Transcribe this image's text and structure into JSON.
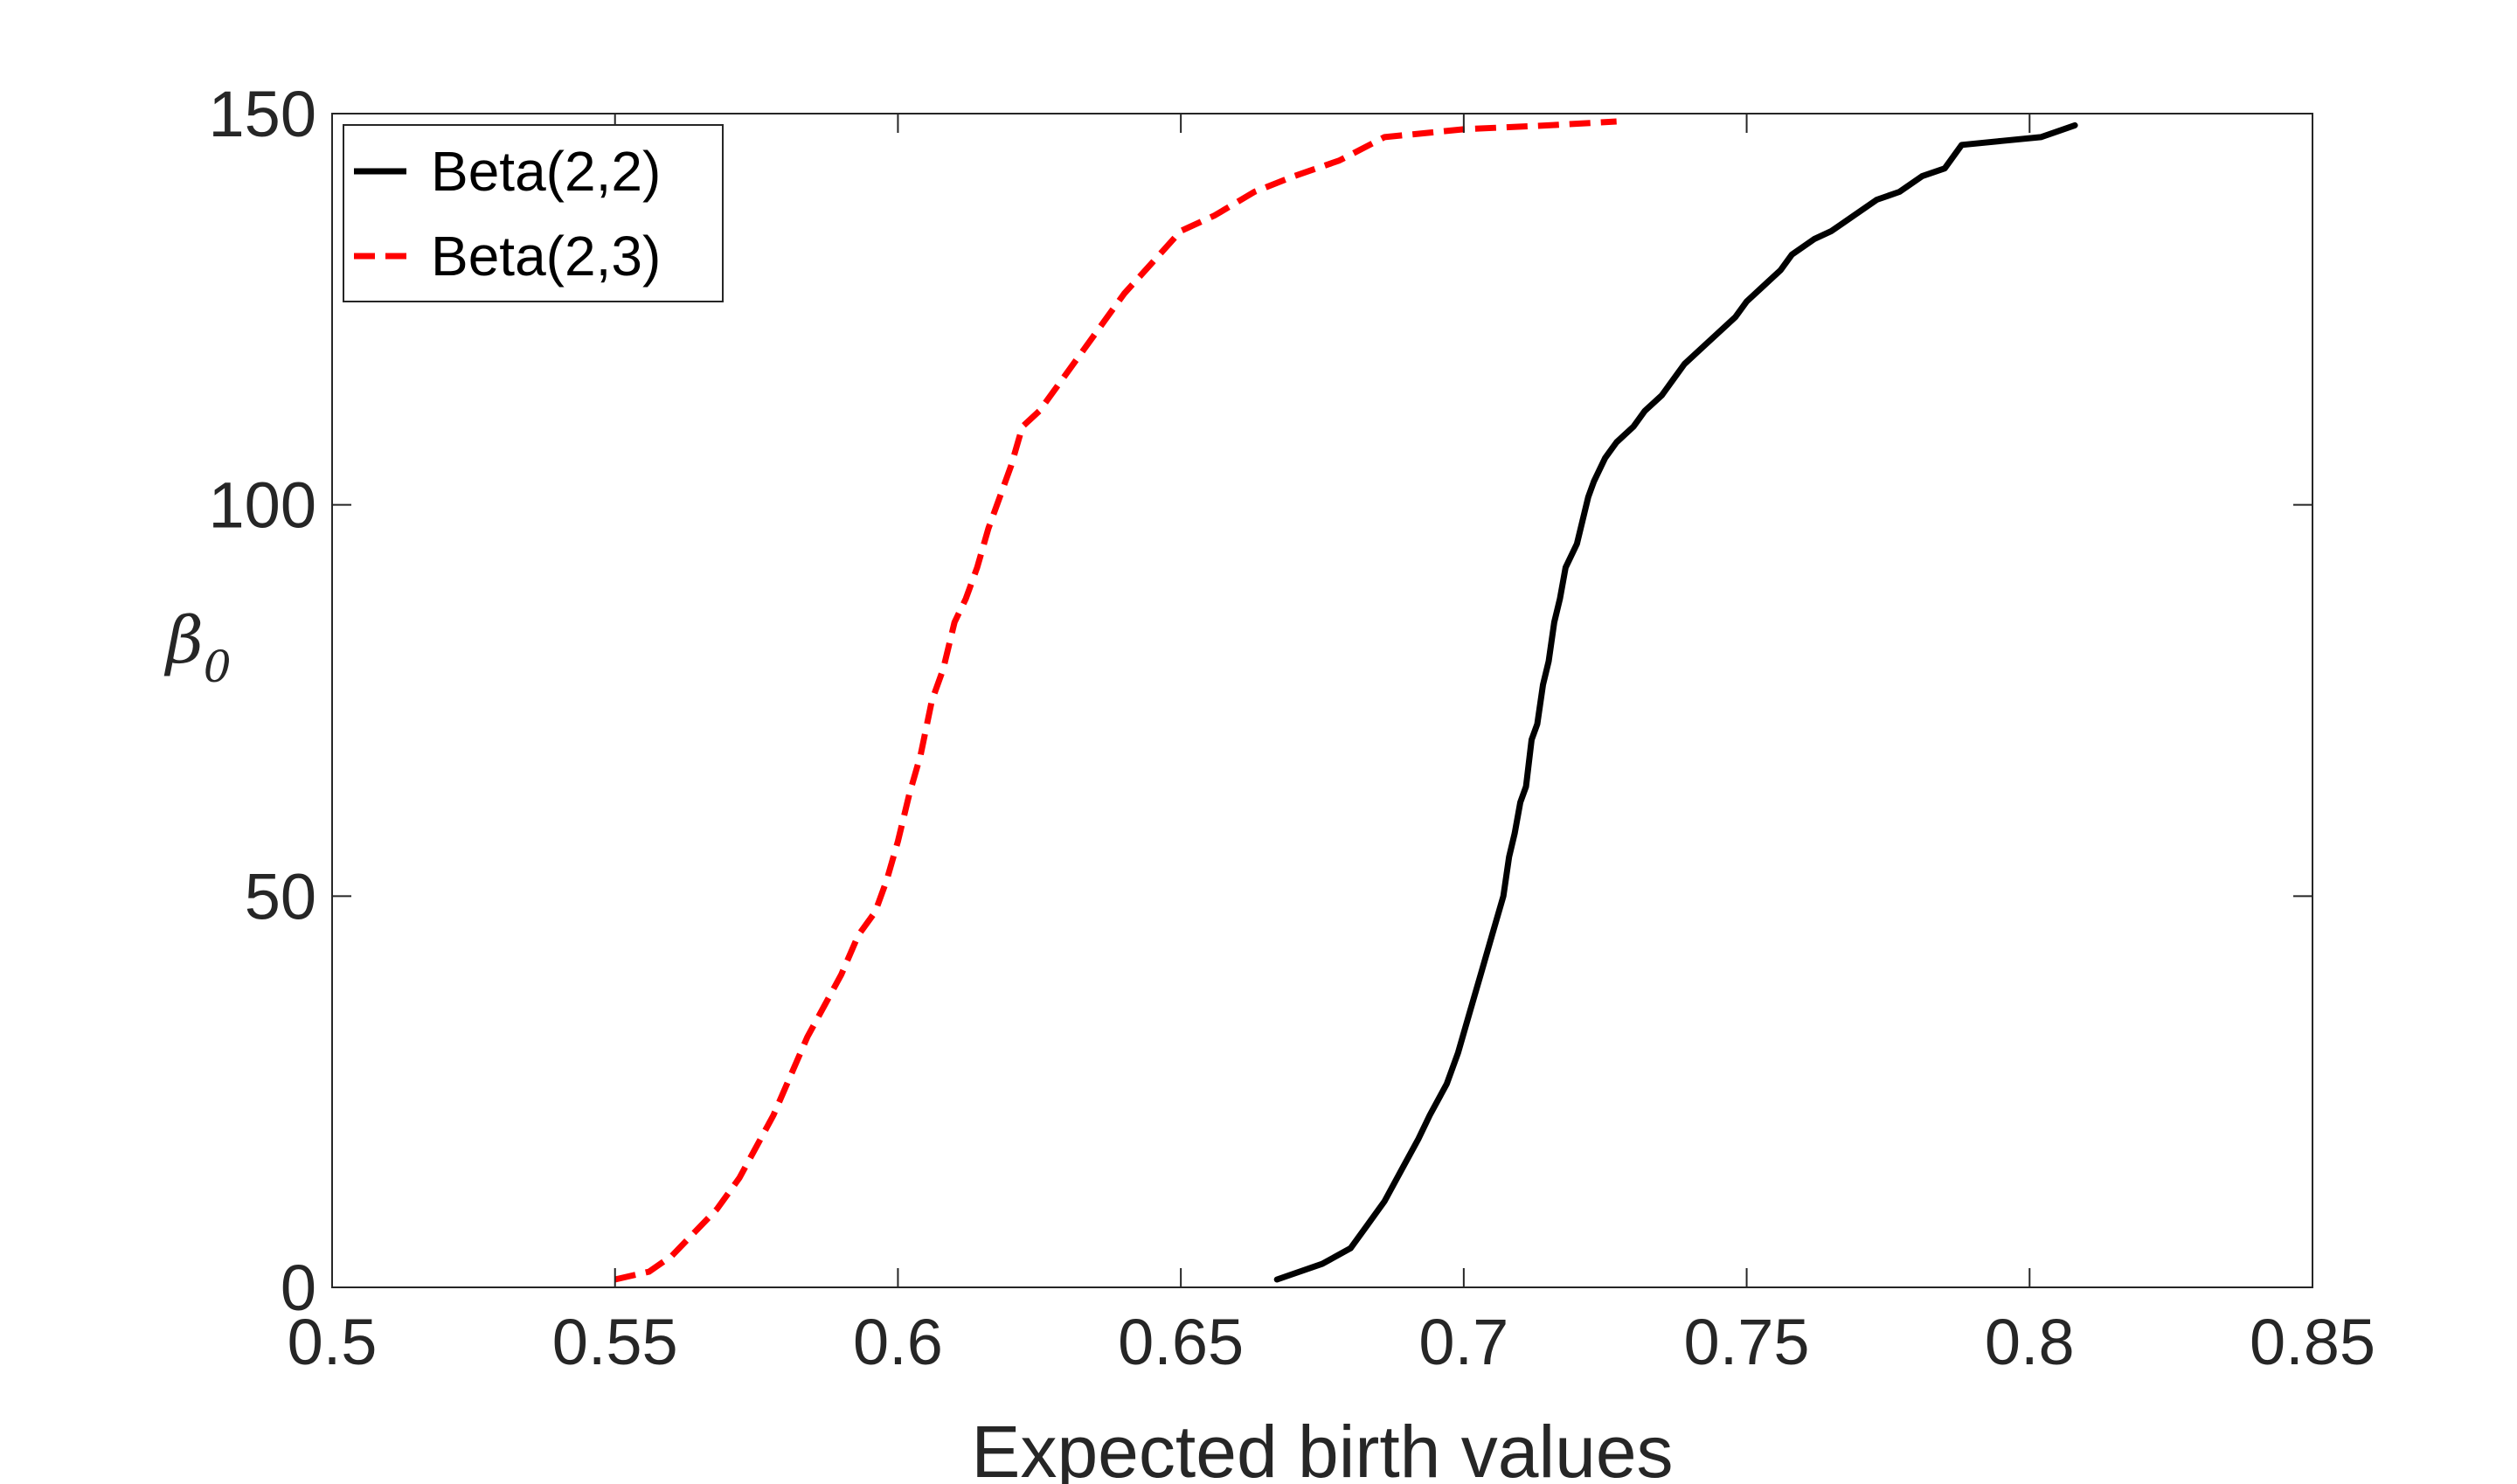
{
  "chart_data": {
    "type": "line",
    "title": "",
    "xlabel": "Expected birth values",
    "ylabel_symbol": "β",
    "ylabel_subscript": "0",
    "xlim": [
      0.5,
      0.85
    ],
    "ylim": [
      0,
      150
    ],
    "xticks": [
      0.5,
      0.55,
      0.6,
      0.65,
      0.7,
      0.75,
      0.8,
      0.85
    ],
    "xtick_labels": [
      "0.5",
      "0.55",
      "0.6",
      "0.65",
      "0.7",
      "0.75",
      "0.8",
      "0.85"
    ],
    "yticks": [
      0,
      50,
      100,
      150
    ],
    "ytick_labels": [
      "0",
      "50",
      "100",
      "150"
    ],
    "grid": false,
    "legend_position": "top-left",
    "series": [
      {
        "name": "Beta(2,2)",
        "color": "#000000",
        "style": "solid",
        "x": [
          0.667,
          0.675,
          0.68,
          0.683,
          0.686,
          0.689,
          0.692,
          0.694,
          0.697,
          0.699,
          0.701,
          0.703,
          0.705,
          0.707,
          0.708,
          0.709,
          0.71,
          0.711,
          0.712,
          0.713,
          0.714,
          0.715,
          0.716,
          0.717,
          0.718,
          0.72,
          0.721,
          0.722,
          0.723,
          0.725,
          0.727,
          0.73,
          0.732,
          0.735,
          0.737,
          0.739,
          0.742,
          0.745,
          0.748,
          0.75,
          0.753,
          0.756,
          0.758,
          0.762,
          0.765,
          0.769,
          0.773,
          0.777,
          0.781,
          0.785,
          0.788,
          0.795,
          0.802,
          0.808
        ],
        "y": [
          1,
          3,
          5,
          8,
          11,
          15,
          19,
          22,
          26,
          30,
          35,
          40,
          45,
          50,
          55,
          58,
          62,
          64,
          70,
          72,
          77,
          80,
          85,
          88,
          92,
          95,
          98,
          101,
          103,
          106,
          108,
          110,
          112,
          114,
          116,
          118,
          120,
          122,
          124,
          126,
          128,
          130,
          132,
          134,
          135,
          137,
          139,
          140,
          142,
          143,
          146,
          146.5,
          147,
          148.5
        ]
      },
      {
        "name": "Beta(2,3)",
        "color": "#ff0000",
        "style": "dashed",
        "x": [
          0.55,
          0.556,
          0.56,
          0.564,
          0.568,
          0.572,
          0.575,
          0.578,
          0.581,
          0.584,
          0.587,
          0.59,
          0.593,
          0.596,
          0.598,
          0.6,
          0.602,
          0.604,
          0.606,
          0.608,
          0.61,
          0.612,
          0.614,
          0.616,
          0.618,
          0.62,
          0.622,
          0.625,
          0.628,
          0.632,
          0.636,
          0.64,
          0.645,
          0.65,
          0.656,
          0.663,
          0.67,
          0.678,
          0.686,
          0.7,
          0.715,
          0.727
        ],
        "y": [
          1,
          2,
          4,
          7,
          10,
          14,
          18,
          22,
          27,
          32,
          36,
          40,
          45,
          48,
          52,
          57,
          63,
          68,
          75,
          79,
          85,
          88,
          92,
          97,
          101,
          105,
          110,
          112,
          115,
          119,
          123,
          127,
          131,
          135,
          137,
          140,
          142,
          144,
          147,
          148,
          148.5,
          149
        ]
      }
    ]
  }
}
